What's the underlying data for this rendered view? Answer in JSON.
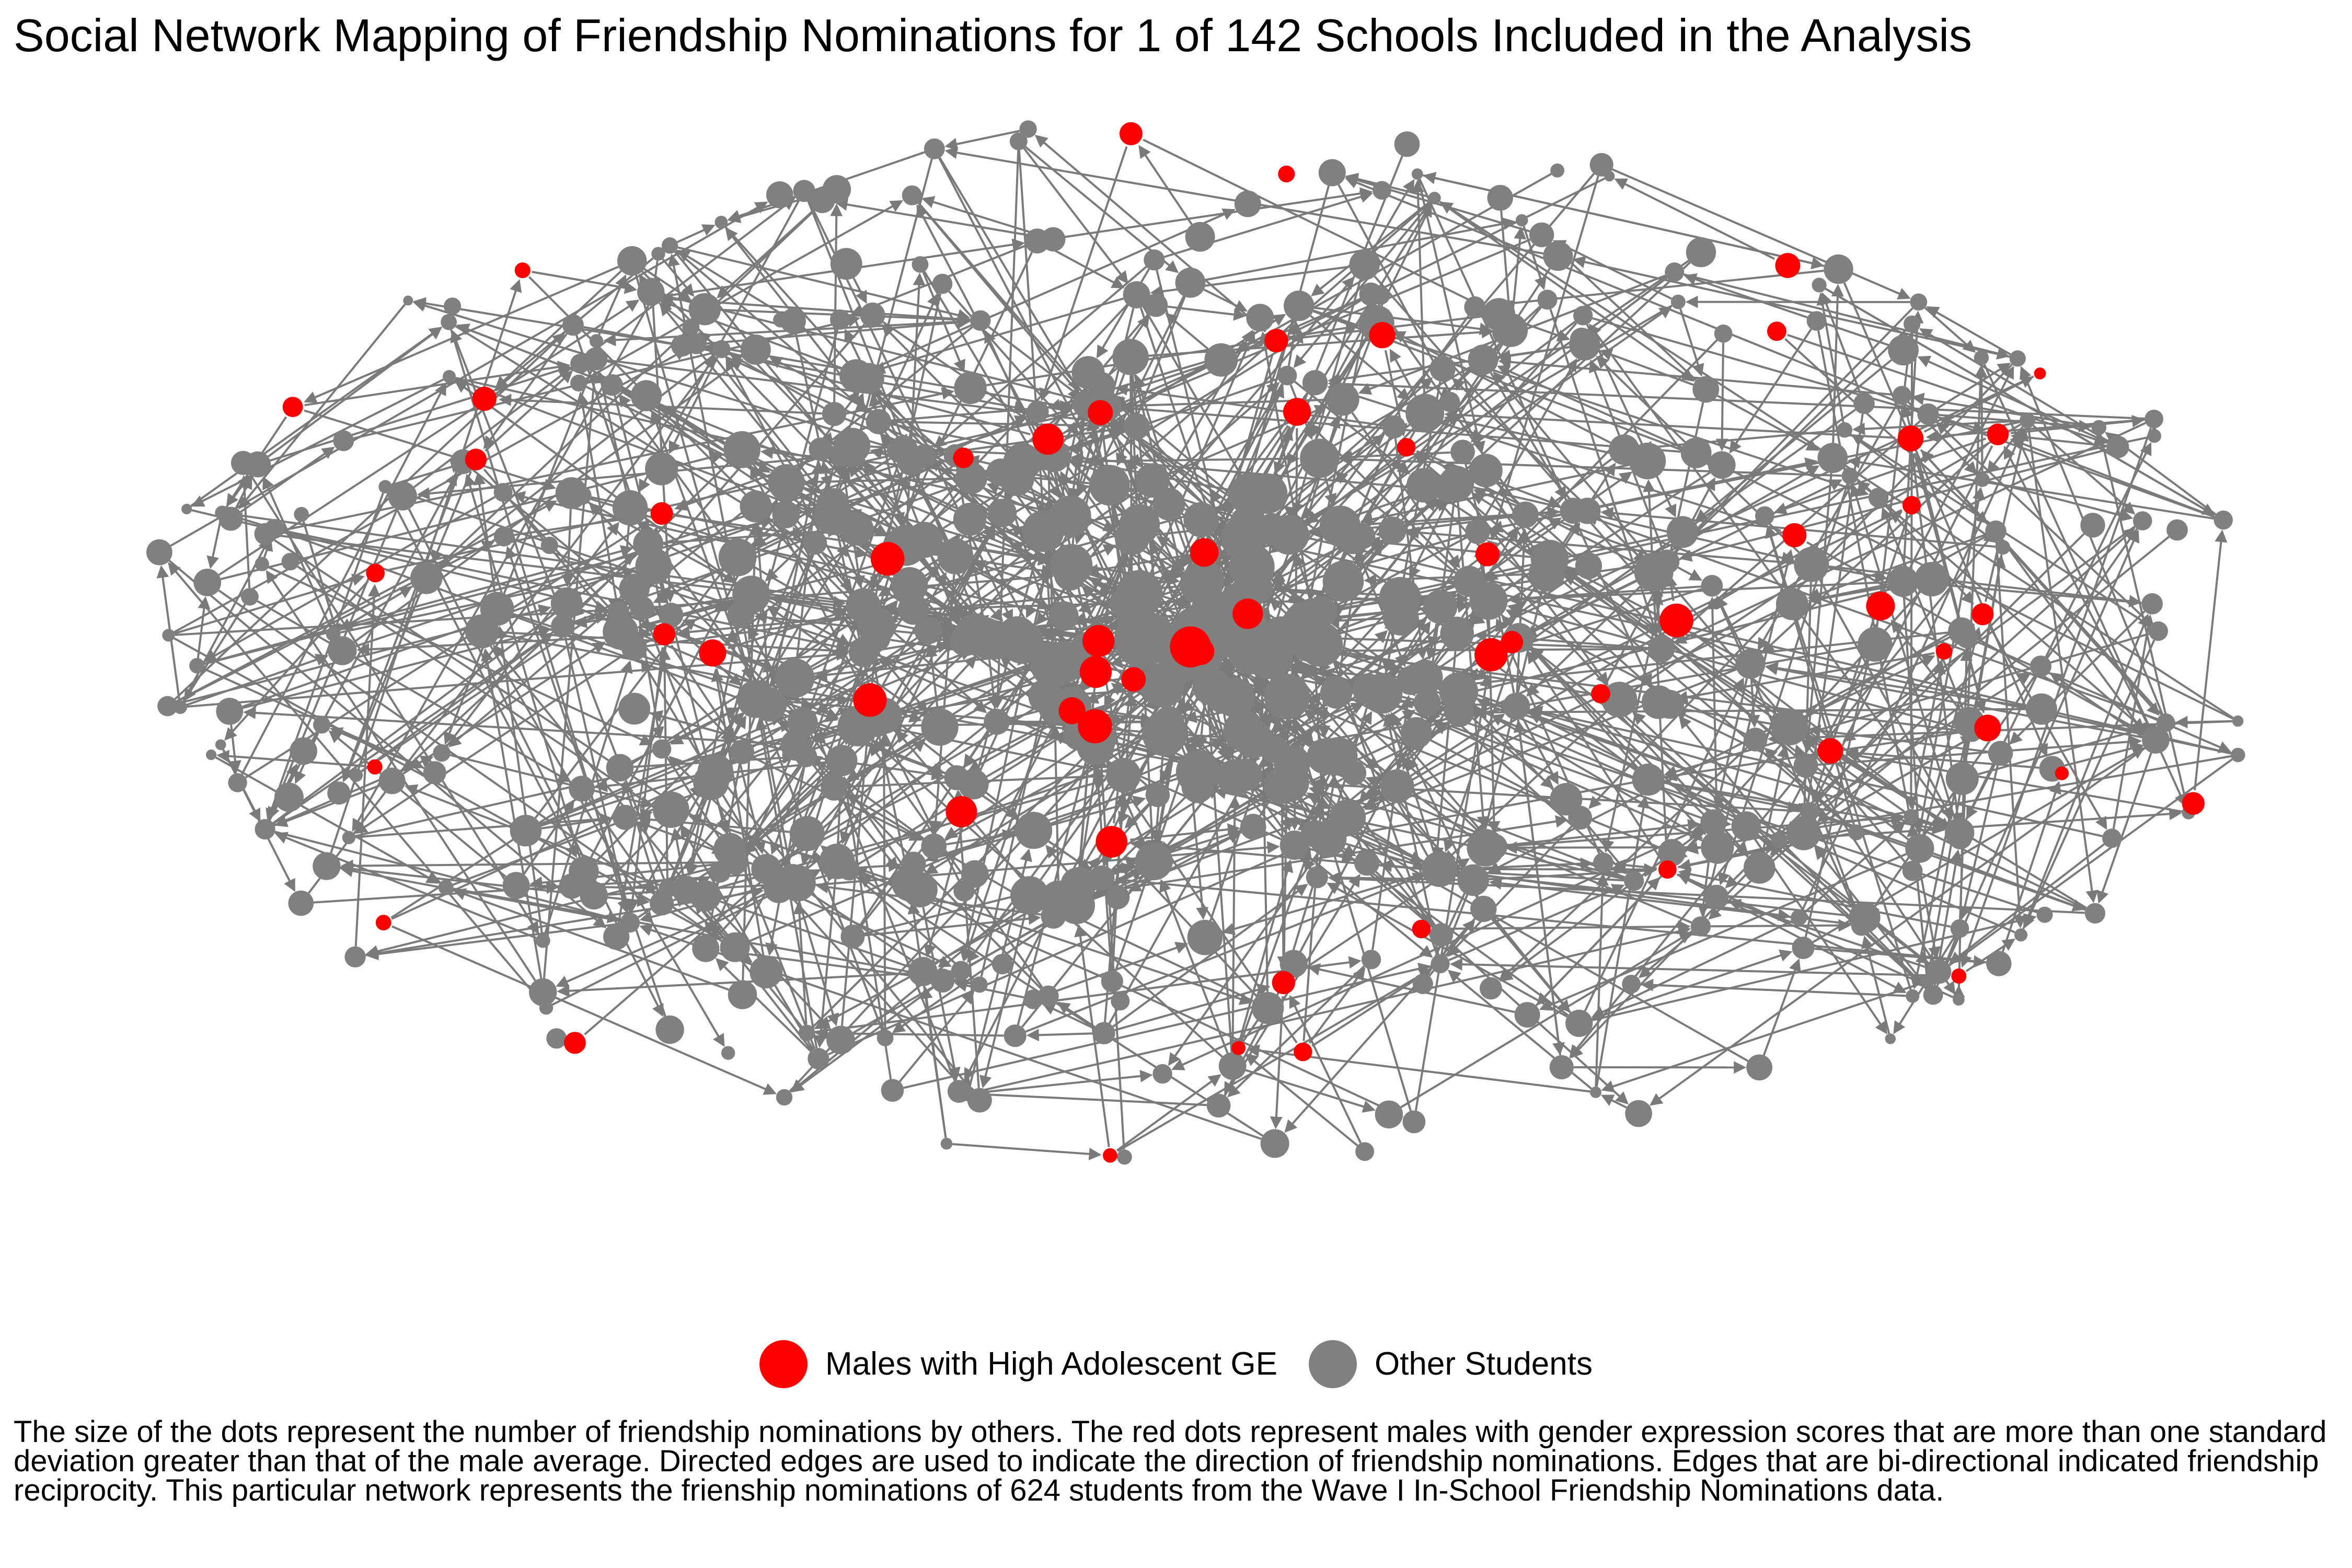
{
  "title": "Social Network Mapping of Friendship Nominations for 1 of 142 Schools Included in the Analysis",
  "colors": {
    "highlight": "#ff0000",
    "other": "#808080",
    "edge": "#7a7a7a"
  },
  "legend": {
    "items": [
      {
        "label": "Males with High Adolescent GE",
        "color": "#ff0000"
      },
      {
        "label": "Other Students",
        "color": "#808080"
      }
    ]
  },
  "caption": "The size of the dots represent the number of friendship nominations by others. The red dots represent males with gender expression scores that are more than one standard deviation greater than that of the male average. Directed edges are used to indicate the direction of friendship nominations. Edges that are bi-directional indicated friendship reciprocity. This particular network represents the frienship nominations of 624 students from the Wave I In-School Friendship Nominations data.",
  "chart_data": {
    "type": "network",
    "directed": true,
    "node_count": 624,
    "groups": [
      {
        "name": "Males with High Adolescent GE",
        "color": "#ff0000"
      },
      {
        "name": "Other Students",
        "color": "#808080"
      }
    ],
    "size_encoding": "number of friendship nominations by others"
  }
}
